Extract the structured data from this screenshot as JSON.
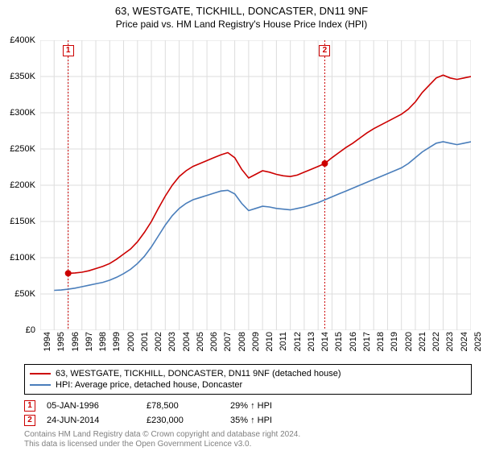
{
  "title": "63, WESTGATE, TICKHILL, DONCASTER, DN11 9NF",
  "subtitle": "Price paid vs. HM Land Registry's House Price Index (HPI)",
  "chart": {
    "type": "line",
    "background_color": "#ffffff",
    "grid_color": "#dddddd",
    "axis_color": "#000000",
    "xlim": [
      1994,
      2025
    ],
    "ylim": [
      0,
      400000
    ],
    "x_ticks": [
      1994,
      1995,
      1996,
      1997,
      1998,
      1999,
      2000,
      2001,
      2002,
      2003,
      2004,
      2005,
      2006,
      2007,
      2008,
      2009,
      2010,
      2011,
      2012,
      2013,
      2014,
      2015,
      2016,
      2017,
      2018,
      2019,
      2020,
      2021,
      2022,
      2023,
      2024,
      2025
    ],
    "y_ticks": [
      0,
      50000,
      100000,
      150000,
      200000,
      250000,
      300000,
      350000,
      400000
    ],
    "y_tick_labels": [
      "£0",
      "£50K",
      "£100K",
      "£150K",
      "£200K",
      "£250K",
      "£300K",
      "£350K",
      "£400K"
    ],
    "x_label_fontsize": 11,
    "y_label_fontsize": 11,
    "line_width": 1.6,
    "series": [
      {
        "name": "63, WESTGATE, TICKHILL, DONCASTER, DN11 9NF (detached house)",
        "color": "#cc0000",
        "data": [
          [
            1996.01,
            78500
          ],
          [
            1996.5,
            79000
          ],
          [
            1997,
            80000
          ],
          [
            1997.5,
            82000
          ],
          [
            1998,
            85000
          ],
          [
            1998.5,
            88000
          ],
          [
            1999,
            92000
          ],
          [
            1999.5,
            98000
          ],
          [
            2000,
            105000
          ],
          [
            2000.5,
            112000
          ],
          [
            2001,
            122000
          ],
          [
            2001.5,
            135000
          ],
          [
            2002,
            150000
          ],
          [
            2002.5,
            168000
          ],
          [
            2003,
            185000
          ],
          [
            2003.5,
            200000
          ],
          [
            2004,
            212000
          ],
          [
            2004.5,
            220000
          ],
          [
            2005,
            226000
          ],
          [
            2005.5,
            230000
          ],
          [
            2006,
            234000
          ],
          [
            2006.5,
            238000
          ],
          [
            2007,
            242000
          ],
          [
            2007.5,
            245000
          ],
          [
            2008,
            238000
          ],
          [
            2008.5,
            222000
          ],
          [
            2009,
            210000
          ],
          [
            2009.5,
            215000
          ],
          [
            2010,
            220000
          ],
          [
            2010.5,
            218000
          ],
          [
            2011,
            215000
          ],
          [
            2011.5,
            213000
          ],
          [
            2012,
            212000
          ],
          [
            2012.5,
            214000
          ],
          [
            2013,
            218000
          ],
          [
            2013.5,
            222000
          ],
          [
            2014,
            226000
          ],
          [
            2014.48,
            230000
          ],
          [
            2015,
            238000
          ],
          [
            2015.5,
            245000
          ],
          [
            2016,
            252000
          ],
          [
            2016.5,
            258000
          ],
          [
            2017,
            265000
          ],
          [
            2017.5,
            272000
          ],
          [
            2018,
            278000
          ],
          [
            2018.5,
            283000
          ],
          [
            2019,
            288000
          ],
          [
            2019.5,
            293000
          ],
          [
            2020,
            298000
          ],
          [
            2020.5,
            305000
          ],
          [
            2021,
            315000
          ],
          [
            2021.5,
            328000
          ],
          [
            2022,
            338000
          ],
          [
            2022.5,
            348000
          ],
          [
            2023,
            352000
          ],
          [
            2023.5,
            348000
          ],
          [
            2024,
            346000
          ],
          [
            2024.5,
            348000
          ],
          [
            2025,
            350000
          ]
        ]
      },
      {
        "name": "HPI: Average price, detached house, Doncaster",
        "color": "#4a7ebb",
        "data": [
          [
            1995,
            55000
          ],
          [
            1995.5,
            55500
          ],
          [
            1996,
            56500
          ],
          [
            1996.5,
            58000
          ],
          [
            1997,
            60000
          ],
          [
            1997.5,
            62000
          ],
          [
            1998,
            64000
          ],
          [
            1998.5,
            66000
          ],
          [
            1999,
            69000
          ],
          [
            1999.5,
            73000
          ],
          [
            2000,
            78000
          ],
          [
            2000.5,
            84000
          ],
          [
            2001,
            92000
          ],
          [
            2001.5,
            102000
          ],
          [
            2002,
            115000
          ],
          [
            2002.5,
            130000
          ],
          [
            2003,
            145000
          ],
          [
            2003.5,
            158000
          ],
          [
            2004,
            168000
          ],
          [
            2004.5,
            175000
          ],
          [
            2005,
            180000
          ],
          [
            2005.5,
            183000
          ],
          [
            2006,
            186000
          ],
          [
            2006.5,
            189000
          ],
          [
            2007,
            192000
          ],
          [
            2007.5,
            193000
          ],
          [
            2008,
            188000
          ],
          [
            2008.5,
            175000
          ],
          [
            2009,
            165000
          ],
          [
            2009.5,
            168000
          ],
          [
            2010,
            171000
          ],
          [
            2010.5,
            170000
          ],
          [
            2011,
            168000
          ],
          [
            2011.5,
            167000
          ],
          [
            2012,
            166000
          ],
          [
            2012.5,
            168000
          ],
          [
            2013,
            170000
          ],
          [
            2013.5,
            173000
          ],
          [
            2014,
            176000
          ],
          [
            2014.5,
            180000
          ],
          [
            2015,
            184000
          ],
          [
            2015.5,
            188000
          ],
          [
            2016,
            192000
          ],
          [
            2016.5,
            196000
          ],
          [
            2017,
            200000
          ],
          [
            2017.5,
            204000
          ],
          [
            2018,
            208000
          ],
          [
            2018.5,
            212000
          ],
          [
            2019,
            216000
          ],
          [
            2019.5,
            220000
          ],
          [
            2020,
            224000
          ],
          [
            2020.5,
            230000
          ],
          [
            2021,
            238000
          ],
          [
            2021.5,
            246000
          ],
          [
            2022,
            252000
          ],
          [
            2022.5,
            258000
          ],
          [
            2023,
            260000
          ],
          [
            2023.5,
            258000
          ],
          [
            2024,
            256000
          ],
          [
            2024.5,
            258000
          ],
          [
            2025,
            260000
          ]
        ]
      }
    ],
    "sale_markers": [
      {
        "n": "1",
        "x": 1996.01,
        "y": 78500,
        "color": "#cc0000"
      },
      {
        "n": "2",
        "x": 2014.48,
        "y": 230000,
        "color": "#cc0000"
      }
    ]
  },
  "legend": {
    "rows": [
      {
        "color": "#cc0000",
        "label": "63, WESTGATE, TICKHILL, DONCASTER, DN11 9NF (detached house)"
      },
      {
        "color": "#4a7ebb",
        "label": "HPI: Average price, detached house, Doncaster"
      }
    ]
  },
  "sales": [
    {
      "n": "1",
      "color": "#cc0000",
      "date": "05-JAN-1996",
      "price": "£78,500",
      "diff": "29% ↑ HPI"
    },
    {
      "n": "2",
      "color": "#cc0000",
      "date": "24-JUN-2014",
      "price": "£230,000",
      "diff": "35% ↑ HPI"
    }
  ],
  "footer": {
    "line1": "Contains HM Land Registry data © Crown copyright and database right 2024.",
    "line2": "This data is licensed under the Open Government Licence v3.0."
  }
}
